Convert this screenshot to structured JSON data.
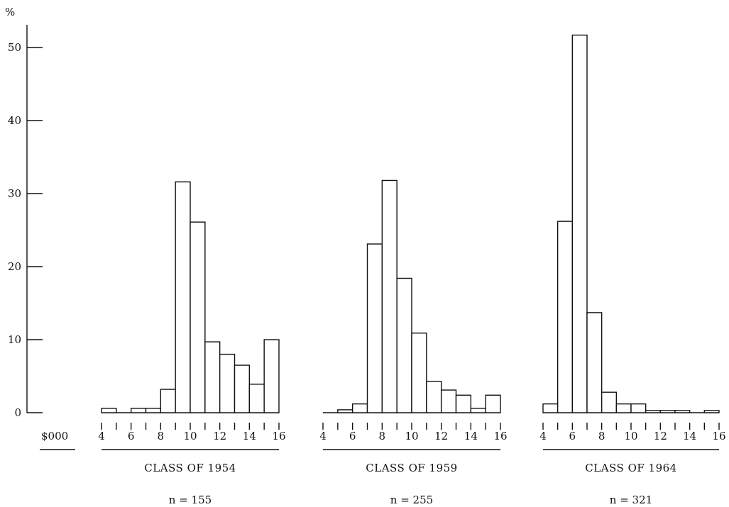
{
  "chart_data": {
    "type": "bar",
    "y_unit_label": "%",
    "x_unit_label": "$000",
    "ylim": [
      0,
      53
    ],
    "y_ticks": [
      "0",
      "10",
      "20",
      "30",
      "40",
      "50"
    ],
    "xlim": [
      4,
      16
    ],
    "x_tick_labels": [
      "4",
      "6",
      "8",
      "10",
      "12",
      "14",
      "16"
    ],
    "bin_width": 1,
    "panels": [
      {
        "title": "CLASS OF 1954",
        "n_label": "n = 155",
        "bins": [
          4,
          5,
          6,
          7,
          8,
          9,
          10,
          11,
          12,
          13,
          14,
          15
        ],
        "values": [
          0.6,
          0,
          0.6,
          0.6,
          3.2,
          31.6,
          26.1,
          9.7,
          8.0,
          6.5,
          3.9,
          10.0
        ]
      },
      {
        "title": "CLASS OF 1959",
        "n_label": "n = 255",
        "bins": [
          4,
          5,
          6,
          7,
          8,
          9,
          10,
          11,
          12,
          13,
          14,
          15
        ],
        "values": [
          0,
          0.4,
          1.2,
          23.1,
          31.8,
          18.4,
          10.9,
          4.3,
          3.1,
          2.4,
          0.6,
          2.4
        ]
      },
      {
        "title": "CLASS OF 1964",
        "n_label": "n = 321",
        "bins": [
          4,
          5,
          6,
          7,
          8,
          9,
          10,
          11,
          12,
          13,
          14,
          15
        ],
        "values": [
          1.2,
          26.2,
          51.7,
          13.7,
          2.8,
          1.2,
          1.2,
          0.3,
          0.3,
          0.3,
          0,
          0.3
        ]
      }
    ]
  }
}
